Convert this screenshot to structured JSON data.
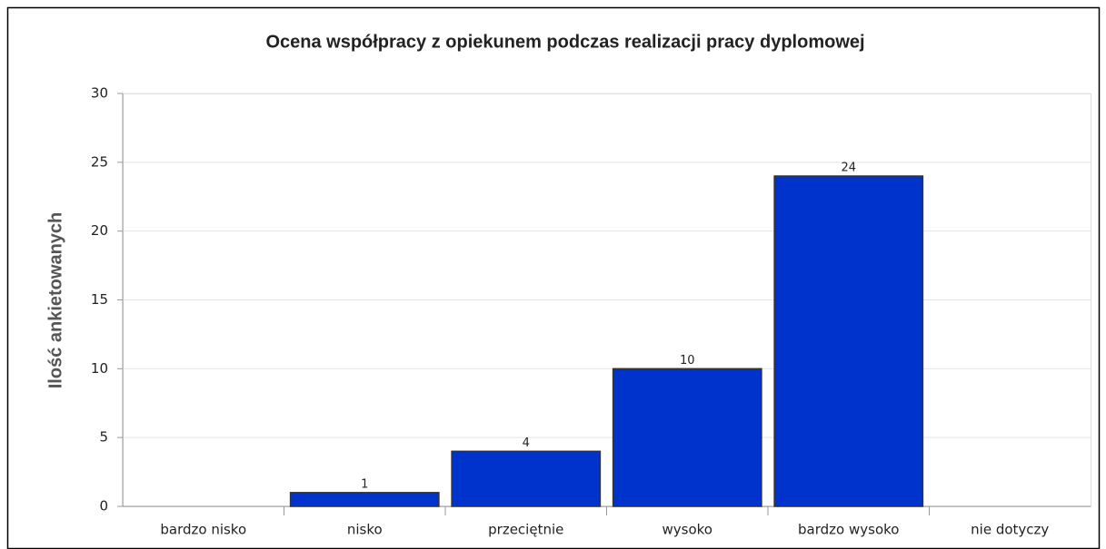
{
  "chart_data": {
    "type": "bar",
    "title": "Ocena współpracy z opiekunem podczas realizacji pracy dyplomowej",
    "y_label": "Ilość ankietowanych",
    "categories": [
      "bardzo nisko",
      "nisko",
      "przeciętnie",
      "wysoko",
      "bardzo wysoko",
      "nie dotyczy"
    ],
    "values": [
      0,
      1,
      4,
      10,
      24,
      0
    ],
    "color": "#0033cc",
    "ylim": [
      0,
      30
    ],
    "yticks": [
      0,
      5,
      10,
      15,
      20,
      25,
      30
    ],
    "grid": true
  }
}
